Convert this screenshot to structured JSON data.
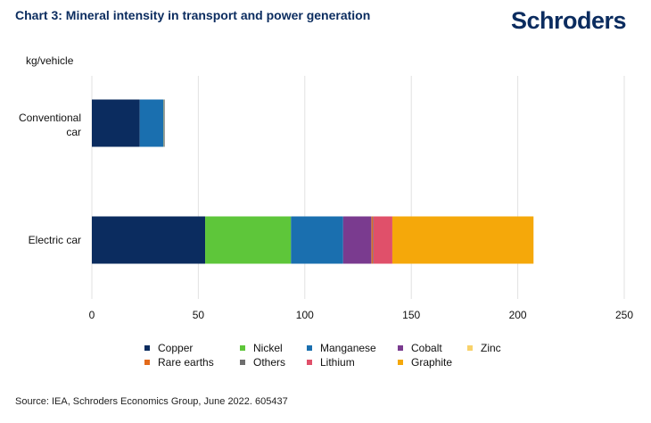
{
  "title": "Chart 3: Mineral intensity in transport and power generation",
  "logo_text": "Schroders",
  "source": "Source: IEA, Schroders Economics Group, June 2022. 605437",
  "chart_data": {
    "type": "bar",
    "orientation": "horizontal",
    "stacked": true,
    "unit_label": "kg/vehicle",
    "categories": [
      "Conventional car",
      "Electric car"
    ],
    "xlim": [
      0,
      250
    ],
    "xticks": [
      0,
      50,
      100,
      150,
      200,
      250
    ],
    "grid": "vertical",
    "legend_position": "bottom",
    "series": [
      {
        "name": "Copper",
        "color": "#0b2c5f",
        "values": [
          22.5,
          53.2
        ]
      },
      {
        "name": "Nickel",
        "color": "#5ec63a",
        "values": [
          0,
          40.3
        ]
      },
      {
        "name": "Manganese",
        "color": "#1a6faf",
        "values": [
          11.2,
          24.5
        ]
      },
      {
        "name": "Cobalt",
        "color": "#7a3b8f",
        "values": [
          0,
          13.3
        ]
      },
      {
        "name": "Zinc",
        "color": "#f8d26a",
        "values": [
          0.2,
          0.1
        ]
      },
      {
        "name": "Rare earths",
        "color": "#e36a1a",
        "values": [
          0,
          0.5
        ]
      },
      {
        "name": "Others",
        "color": "#6e6e6e",
        "values": [
          0.3,
          0.3
        ]
      },
      {
        "name": "Lithium",
        "color": "#e0506a",
        "values": [
          0,
          8.9
        ]
      },
      {
        "name": "Graphite",
        "color": "#f5a80a",
        "values": [
          0,
          66.3
        ]
      }
    ]
  }
}
